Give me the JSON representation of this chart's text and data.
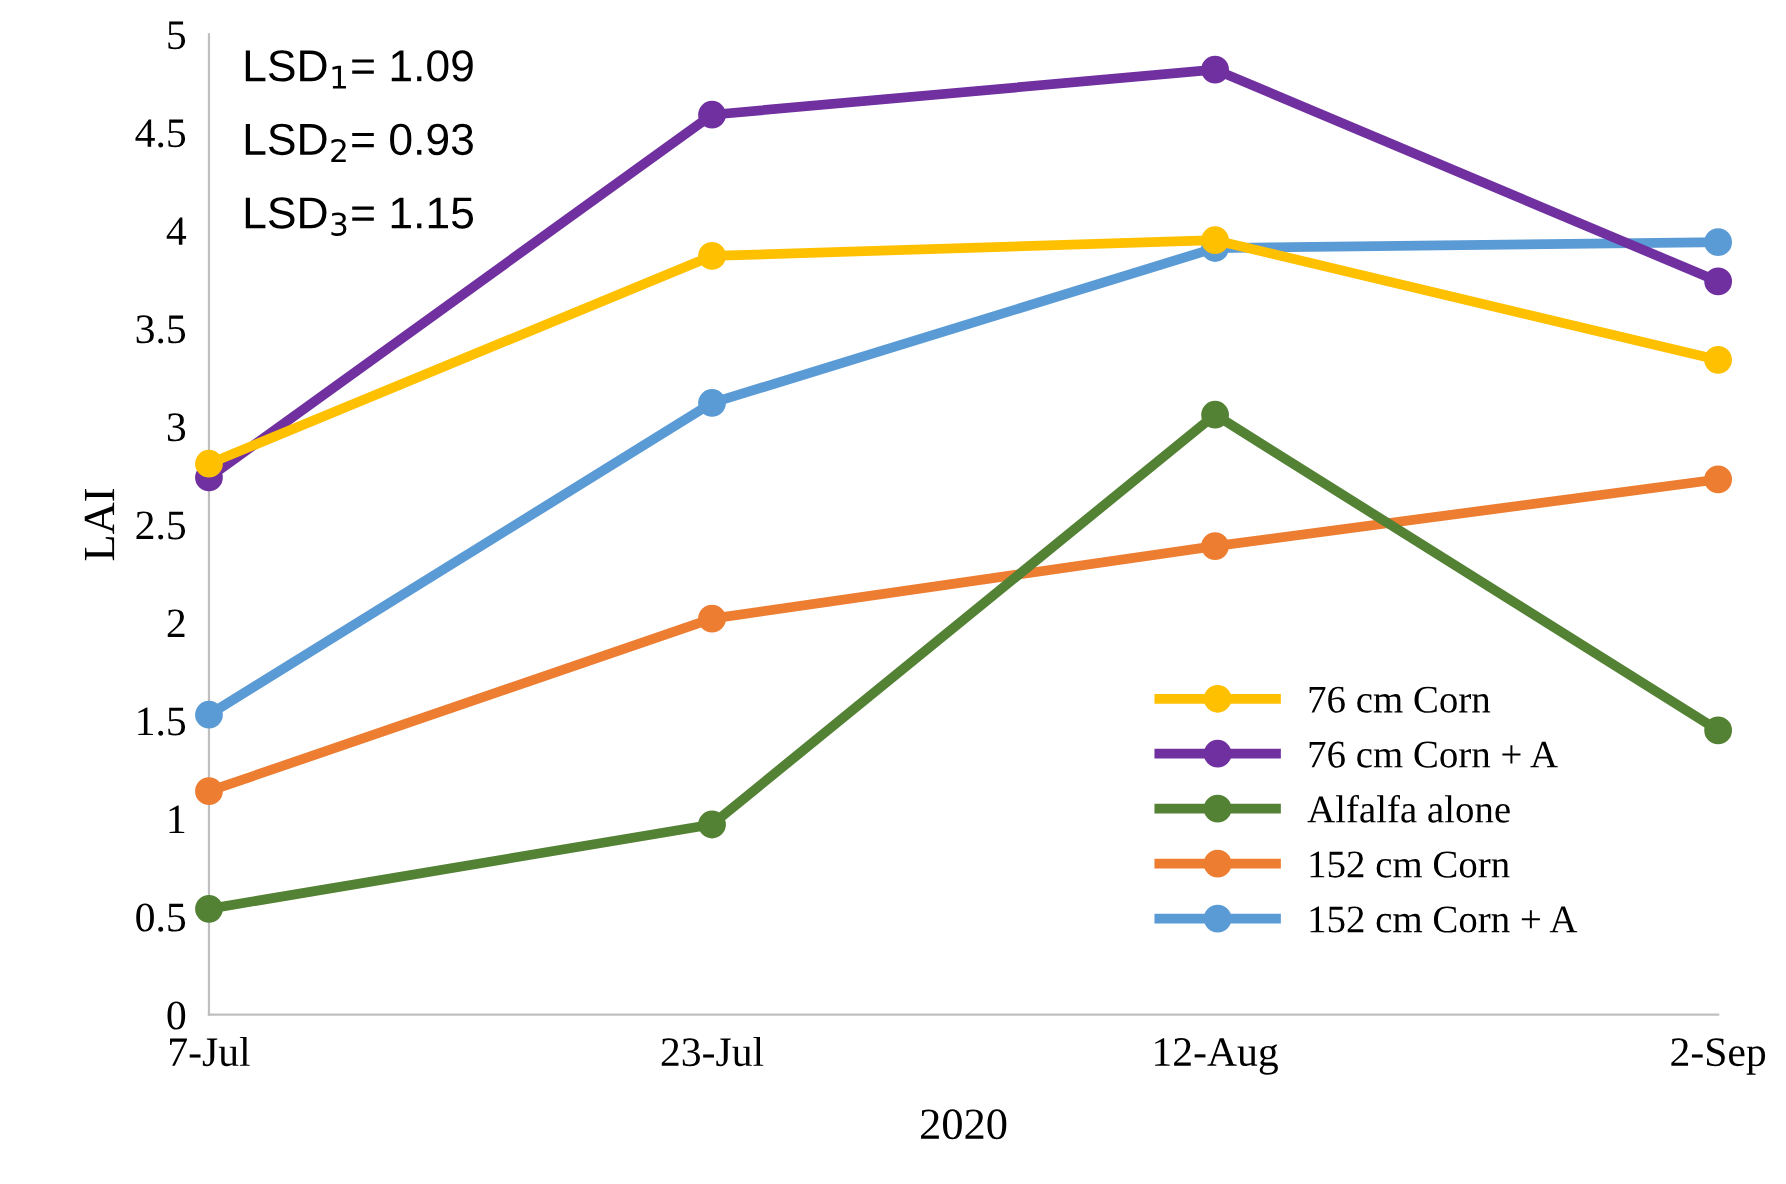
{
  "chart_data": {
    "type": "line",
    "xlabel": "2020",
    "ylabel": "LAI",
    "categories": [
      "7-Jul",
      "23-Jul",
      "12-Aug",
      "2-Sep"
    ],
    "series": [
      {
        "name": "76 cm Corn",
        "color": "#ffc000",
        "values": [
          2.81,
          3.87,
          3.95,
          3.34
        ]
      },
      {
        "name": "76 cm Corn + A",
        "color": "#7030a0",
        "values": [
          2.74,
          4.59,
          4.82,
          3.74
        ]
      },
      {
        "name": "Alfalfa alone",
        "color": "#548235",
        "values": [
          0.54,
          0.97,
          3.06,
          1.45
        ]
      },
      {
        "name": "152 cm Corn",
        "color": "#ed7d31",
        "values": [
          1.14,
          2.02,
          2.39,
          2.73
        ]
      },
      {
        "name": "152 cm Corn + A",
        "color": "#5b9bd5",
        "values": [
          1.53,
          3.12,
          3.91,
          3.94
        ]
      }
    ],
    "ylim": [
      0,
      5
    ],
    "yticks": [
      0,
      0.5,
      1,
      1.5,
      2,
      2.5,
      3,
      3.5,
      4,
      4.5,
      5
    ],
    "annotations": [
      "LSD$_{1}$= 1.09",
      "LSD$_{2}$= 0.93",
      "LSD$_{3}$= 1.15"
    ],
    "marker": "circle",
    "line_style": "solid",
    "grid": false,
    "legend": "bottom right"
  }
}
